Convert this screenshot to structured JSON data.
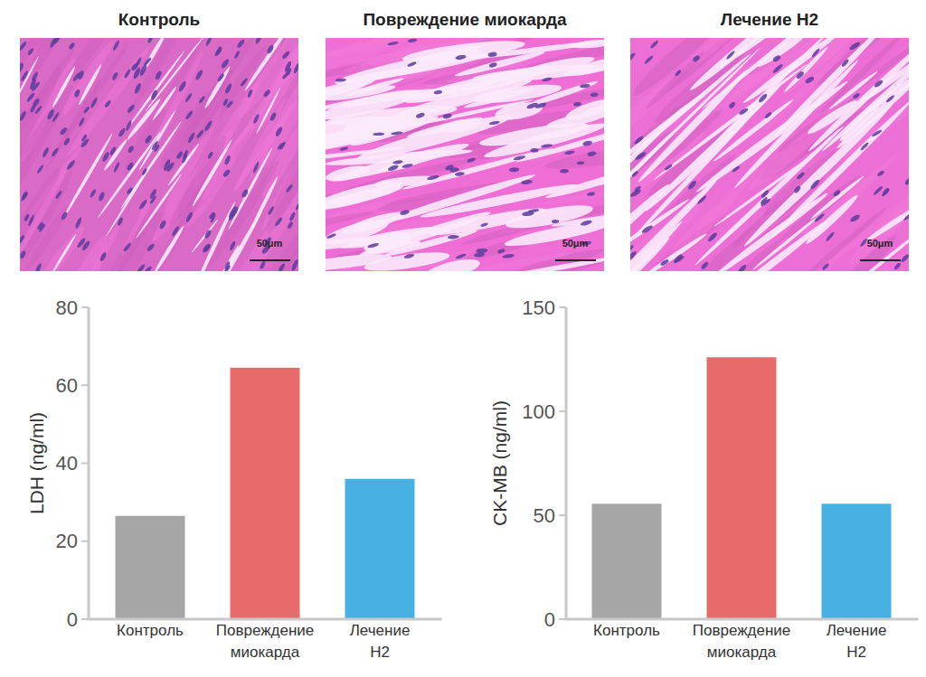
{
  "panels": [
    {
      "title": "Контроль",
      "scale_bar": "50μm"
    },
    {
      "title": "Повреждение миокарда",
      "scale_bar": "50μm"
    },
    {
      "title": "Лечение H2",
      "scale_bar": "50μm"
    }
  ],
  "chart_data": [
    {
      "type": "bar",
      "ylabel": "LDH (ng/ml)",
      "categories": [
        "Контроль",
        "Повреждение миокарда",
        "Лечение H2"
      ],
      "values": [
        26.5,
        64.5,
        36
      ],
      "colors": [
        "#a6a6a6",
        "#e86b6b",
        "#48b1e4"
      ],
      "ylim": [
        0,
        80
      ],
      "yticks": [
        0,
        20,
        40,
        60,
        80
      ],
      "grid": false
    },
    {
      "type": "bar",
      "ylabel": "CK-MB (ng/ml)",
      "categories": [
        "Контроль",
        "Повреждение миокарда",
        "Лечение H2"
      ],
      "values": [
        55.5,
        126,
        55.5
      ],
      "colors": [
        "#a6a6a6",
        "#e86b6b",
        "#48b1e4"
      ],
      "ylim": [
        0,
        150
      ],
      "yticks": [
        0,
        50,
        100,
        150
      ],
      "grid": false
    }
  ]
}
